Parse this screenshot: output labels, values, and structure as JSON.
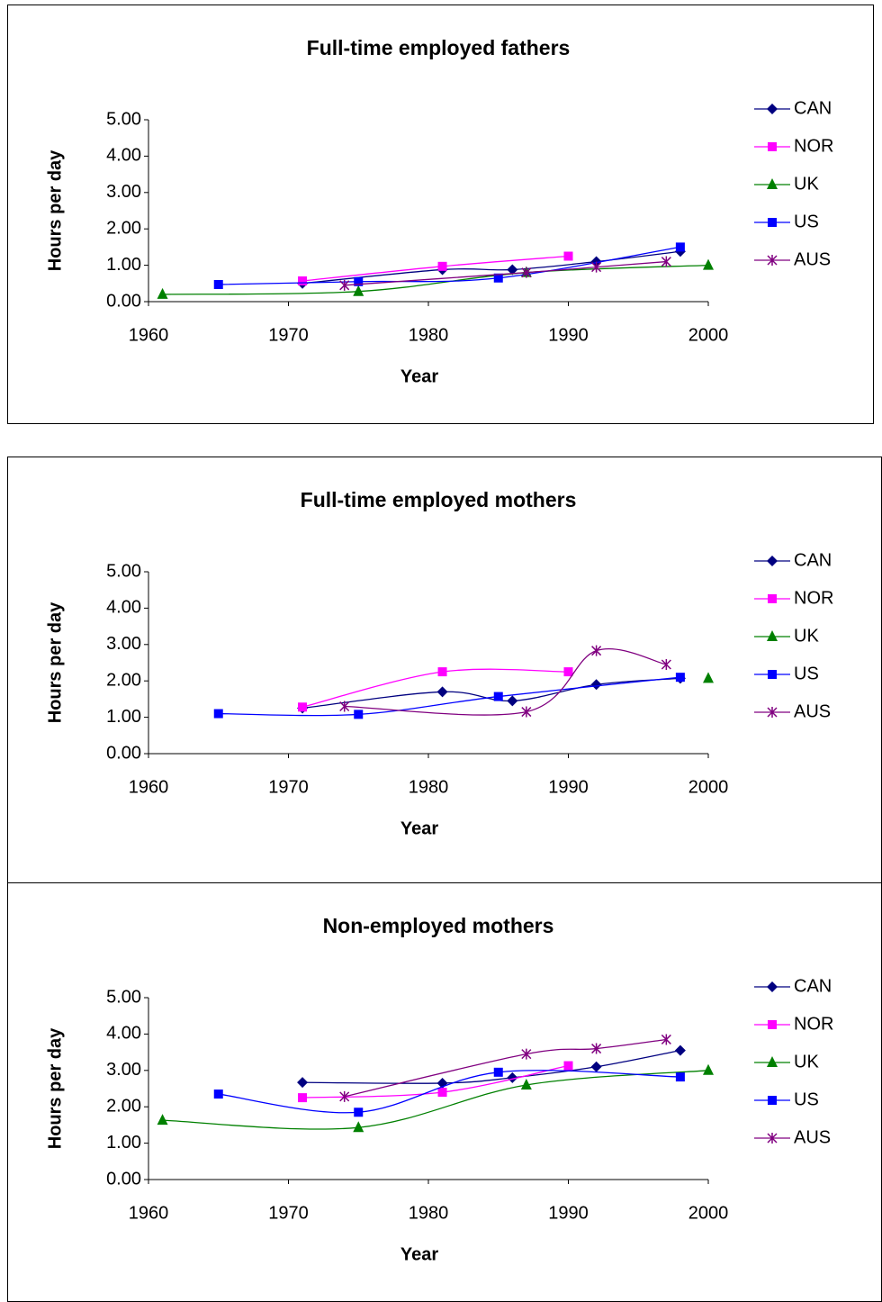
{
  "chart_data": [
    {
      "type": "line",
      "title": "Full-time employed fathers",
      "x_label": "Year",
      "y_label": "Hours per day",
      "xlim": [
        1960,
        2000
      ],
      "xticks": [
        1960,
        1970,
        1980,
        1990,
        2000
      ],
      "ylim": [
        0,
        5
      ],
      "yticks": [
        {
          "value": 0,
          "label": "0.00"
        },
        {
          "value": 1,
          "label": "1.00"
        },
        {
          "value": 2,
          "label": "2.00"
        },
        {
          "value": 3,
          "label": "3.00"
        },
        {
          "value": 4,
          "label": "4.00"
        },
        {
          "value": 5,
          "label": "5.00"
        }
      ],
      "smooth": true,
      "legend": "right",
      "series": [
        {
          "name": "CAN",
          "color": "#000080",
          "marker": "diamond",
          "x": [
            1971,
            1981,
            1986,
            1992,
            1998
          ],
          "values": [
            0.5,
            0.88,
            0.88,
            1.1,
            1.38
          ]
        },
        {
          "name": "NOR",
          "color": "#ff00ff",
          "marker": "square",
          "x": [
            1971,
            1981,
            1990
          ],
          "values": [
            0.57,
            0.97,
            1.25
          ]
        },
        {
          "name": "UK",
          "color": "#008000",
          "marker": "triangle",
          "x": [
            1961,
            1975,
            1987,
            2000
          ],
          "values": [
            0.2,
            0.28,
            0.8,
            1.0
          ]
        },
        {
          "name": "US",
          "color": "#0000ff",
          "marker": "square",
          "x": [
            1965,
            1975,
            1985,
            1998
          ],
          "values": [
            0.47,
            0.55,
            0.65,
            1.5
          ]
        },
        {
          "name": "AUS",
          "color": "#800080",
          "marker": "star",
          "x": [
            1974,
            1987,
            1992,
            1997
          ],
          "values": [
            0.45,
            0.8,
            0.95,
            1.1
          ]
        }
      ]
    },
    {
      "type": "line",
      "title": "Full-time employed mothers",
      "x_label": "Year",
      "y_label": "Hours per day",
      "xlim": [
        1960,
        2000
      ],
      "xticks": [
        1960,
        1970,
        1980,
        1990,
        2000
      ],
      "ylim": [
        0,
        5
      ],
      "yticks": [
        {
          "value": 0,
          "label": "0.00"
        },
        {
          "value": 1,
          "label": "1.00"
        },
        {
          "value": 2,
          "label": "2.00"
        },
        {
          "value": 3,
          "label": "3.00"
        },
        {
          "value": 4,
          "label": "4.00"
        },
        {
          "value": 5,
          "label": "5.00"
        }
      ],
      "smooth": true,
      "legend": "right",
      "series": [
        {
          "name": "CAN",
          "color": "#000080",
          "marker": "diamond",
          "x": [
            1971,
            1981,
            1986,
            1992,
            1998
          ],
          "values": [
            1.25,
            1.7,
            1.45,
            1.9,
            2.07
          ]
        },
        {
          "name": "NOR",
          "color": "#ff00ff",
          "marker": "square",
          "x": [
            1971,
            1981,
            1990
          ],
          "values": [
            1.28,
            2.25,
            2.25
          ]
        },
        {
          "name": "UK",
          "color": "#008000",
          "marker": "triangle",
          "x": [
            2000
          ],
          "values": [
            2.07
          ]
        },
        {
          "name": "US",
          "color": "#0000ff",
          "marker": "square",
          "x": [
            1965,
            1975,
            1985,
            1998
          ],
          "values": [
            1.1,
            1.08,
            1.57,
            2.1
          ]
        },
        {
          "name": "AUS",
          "color": "#800080",
          "marker": "star",
          "x": [
            1974,
            1987,
            1992,
            1997
          ],
          "values": [
            1.3,
            1.15,
            2.83,
            2.45
          ]
        }
      ]
    },
    {
      "type": "line",
      "title": "Non-employed mothers",
      "x_label": "Year",
      "y_label": "Hours per day",
      "xlim": [
        1960,
        2000
      ],
      "xticks": [
        1960,
        1970,
        1980,
        1990,
        2000
      ],
      "ylim": [
        0,
        5
      ],
      "yticks": [
        {
          "value": 0,
          "label": "0.00"
        },
        {
          "value": 1,
          "label": "1.00"
        },
        {
          "value": 2,
          "label": "2.00"
        },
        {
          "value": 3,
          "label": "3.00"
        },
        {
          "value": 4,
          "label": "4.00"
        },
        {
          "value": 5,
          "label": "5.00"
        }
      ],
      "smooth": true,
      "legend": "right",
      "series": [
        {
          "name": "CAN",
          "color": "#000080",
          "marker": "diamond",
          "x": [
            1971,
            1981,
            1986,
            1992,
            1998
          ],
          "values": [
            2.67,
            2.65,
            2.8,
            3.1,
            3.55
          ]
        },
        {
          "name": "NOR",
          "color": "#ff00ff",
          "marker": "square",
          "x": [
            1971,
            1981,
            1990
          ],
          "values": [
            2.25,
            2.4,
            3.13
          ]
        },
        {
          "name": "UK",
          "color": "#008000",
          "marker": "triangle",
          "x": [
            1961,
            1975,
            1987,
            2000
          ],
          "values": [
            1.63,
            1.43,
            2.6,
            3.0
          ]
        },
        {
          "name": "US",
          "color": "#0000ff",
          "marker": "square",
          "x": [
            1965,
            1975,
            1985,
            1998
          ],
          "values": [
            2.35,
            1.85,
            2.95,
            2.82
          ]
        },
        {
          "name": "AUS",
          "color": "#800080",
          "marker": "star",
          "x": [
            1974,
            1987,
            1992,
            1997
          ],
          "values": [
            2.28,
            3.45,
            3.6,
            3.85
          ]
        }
      ]
    }
  ]
}
